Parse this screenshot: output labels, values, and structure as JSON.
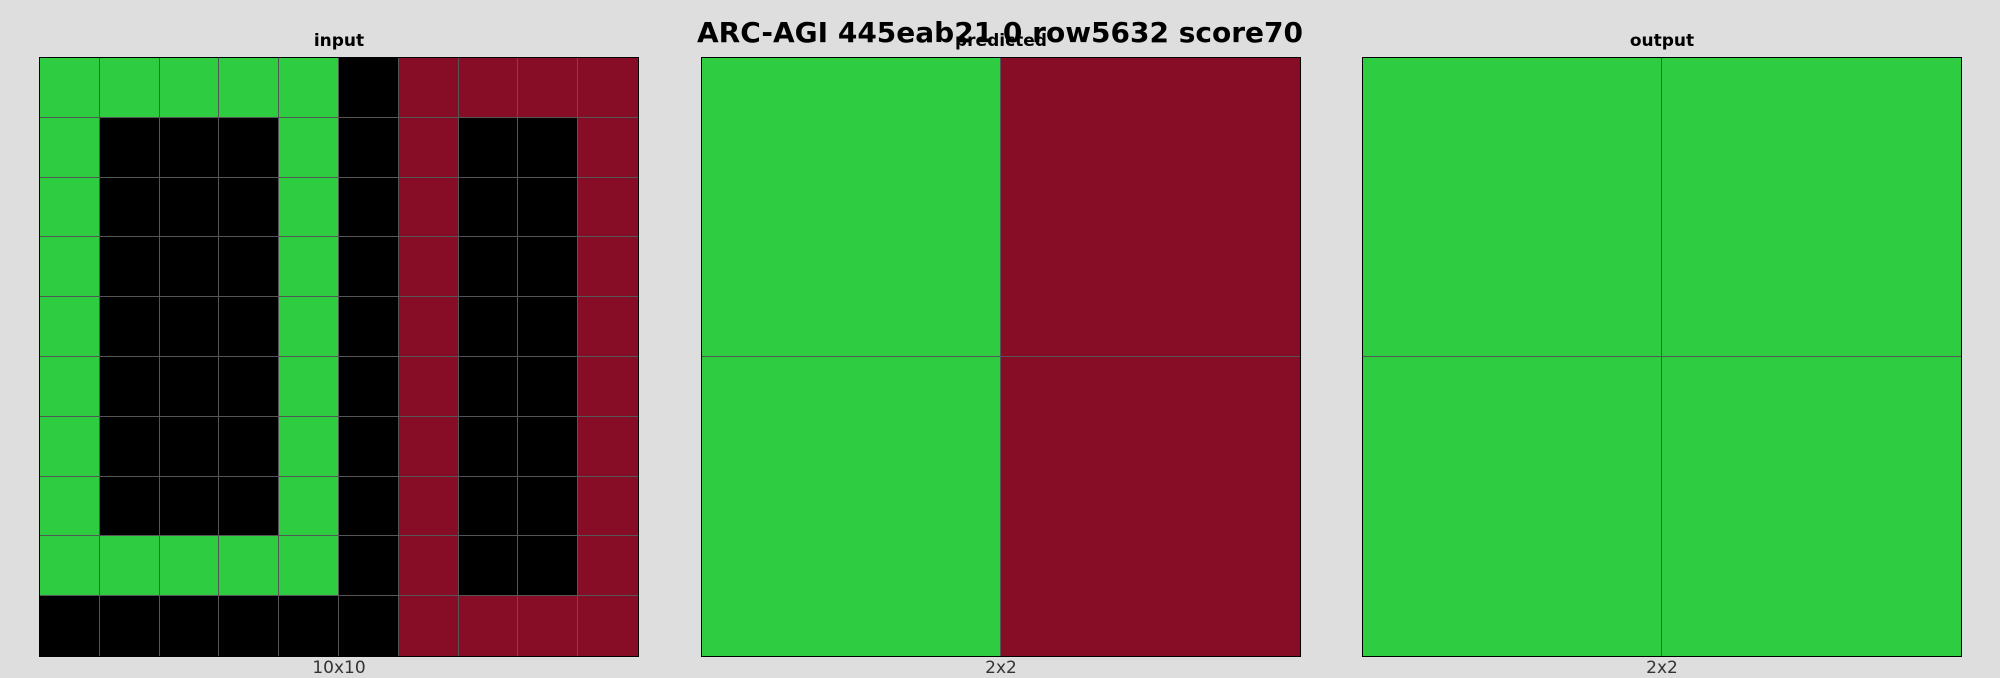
{
  "title": "ARC-AGI 445eab21 0 row5632 score70",
  "colors": {
    "0": "#000000",
    "3": "#2ecc40",
    "9": "#870c25"
  },
  "panels": [
    {
      "title": "input",
      "caption": "10x10",
      "grid": [
        [
          3,
          3,
          3,
          3,
          3,
          0,
          9,
          9,
          9,
          9
        ],
        [
          3,
          0,
          0,
          0,
          3,
          0,
          9,
          0,
          0,
          9
        ],
        [
          3,
          0,
          0,
          0,
          3,
          0,
          9,
          0,
          0,
          9
        ],
        [
          3,
          0,
          0,
          0,
          3,
          0,
          9,
          0,
          0,
          9
        ],
        [
          3,
          0,
          0,
          0,
          3,
          0,
          9,
          0,
          0,
          9
        ],
        [
          3,
          0,
          0,
          0,
          3,
          0,
          9,
          0,
          0,
          9
        ],
        [
          3,
          0,
          0,
          0,
          3,
          0,
          9,
          0,
          0,
          9
        ],
        [
          3,
          0,
          0,
          0,
          3,
          0,
          9,
          0,
          0,
          9
        ],
        [
          3,
          3,
          3,
          3,
          3,
          0,
          9,
          0,
          0,
          9
        ],
        [
          0,
          0,
          0,
          0,
          0,
          0,
          9,
          9,
          9,
          9
        ]
      ]
    },
    {
      "title": "predicted",
      "caption": "2x2",
      "grid": [
        [
          3,
          9
        ],
        [
          3,
          9
        ]
      ]
    },
    {
      "title": "output",
      "caption": "2x2",
      "grid": [
        [
          3,
          3
        ],
        [
          3,
          3
        ]
      ]
    }
  ]
}
